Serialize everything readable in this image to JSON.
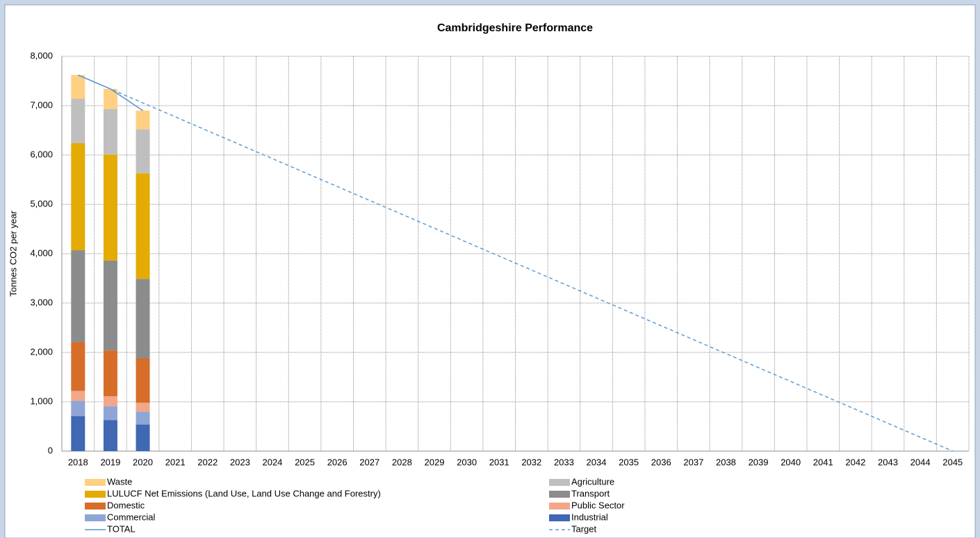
{
  "chart_data": {
    "type": "bar",
    "stacked": true,
    "title": "Cambridgeshire Performance",
    "y_label": "Tonnes CO2 per year",
    "categories": [
      "2018",
      "2019",
      "2020",
      "2021",
      "2022",
      "2023",
      "2024",
      "2025",
      "2026",
      "2027",
      "2028",
      "2029",
      "2030",
      "2031",
      "2032",
      "2033",
      "2034",
      "2035",
      "2036",
      "2037",
      "2038",
      "2039",
      "2040",
      "2041",
      "2042",
      "2043",
      "2044",
      "2045"
    ],
    "series": [
      {
        "name": "Industrial",
        "color": "#4068b3",
        "values": [
          710,
          630,
          540,
          null,
          null,
          null,
          null,
          null,
          null,
          null,
          null,
          null,
          null,
          null,
          null,
          null,
          null,
          null,
          null,
          null,
          null,
          null,
          null,
          null,
          null,
          null,
          null,
          null
        ]
      },
      {
        "name": "Commercial",
        "color": "#8fa5d6",
        "values": [
          310,
          280,
          260,
          null,
          null,
          null,
          null,
          null,
          null,
          null,
          null,
          null,
          null,
          null,
          null,
          null,
          null,
          null,
          null,
          null,
          null,
          null,
          null,
          null,
          null,
          null,
          null,
          null
        ]
      },
      {
        "name": "Public Sector",
        "color": "#f3a789",
        "values": [
          200,
          200,
          180,
          null,
          null,
          null,
          null,
          null,
          null,
          null,
          null,
          null,
          null,
          null,
          null,
          null,
          null,
          null,
          null,
          null,
          null,
          null,
          null,
          null,
          null,
          null,
          null,
          null
        ]
      },
      {
        "name": "Domestic",
        "color": "#d66d29",
        "values": [
          990,
          930,
          900,
          null,
          null,
          null,
          null,
          null,
          null,
          null,
          null,
          null,
          null,
          null,
          null,
          null,
          null,
          null,
          null,
          null,
          null,
          null,
          null,
          null,
          null,
          null,
          null,
          null
        ]
      },
      {
        "name": "Transport",
        "color": "#8c8c8c",
        "values": [
          1860,
          1820,
          1610,
          null,
          null,
          null,
          null,
          null,
          null,
          null,
          null,
          null,
          null,
          null,
          null,
          null,
          null,
          null,
          null,
          null,
          null,
          null,
          null,
          null,
          null,
          null,
          null,
          null
        ]
      },
      {
        "name": "LULUCF Net Emissions (Land Use, Land Use Change and Forestry)",
        "color": "#e3ab03",
        "values": [
          2170,
          2150,
          2140,
          null,
          null,
          null,
          null,
          null,
          null,
          null,
          null,
          null,
          null,
          null,
          null,
          null,
          null,
          null,
          null,
          null,
          null,
          null,
          null,
          null,
          null,
          null,
          null,
          null
        ]
      },
      {
        "name": "Agriculture",
        "color": "#bfbfbf",
        "values": [
          900,
          920,
          890,
          null,
          null,
          null,
          null,
          null,
          null,
          null,
          null,
          null,
          null,
          null,
          null,
          null,
          null,
          null,
          null,
          null,
          null,
          null,
          null,
          null,
          null,
          null,
          null,
          null
        ]
      },
      {
        "name": "Waste",
        "color": "#fed083",
        "values": [
          480,
          410,
          380,
          null,
          null,
          null,
          null,
          null,
          null,
          null,
          null,
          null,
          null,
          null,
          null,
          null,
          null,
          null,
          null,
          null,
          null,
          null,
          null,
          null,
          null,
          null,
          null,
          null
        ]
      },
      {
        "name": "TOTAL",
        "type": "line",
        "color": "#5b8fc9",
        "dashed": false,
        "values": [
          7620,
          7340,
          6900,
          null,
          null,
          null,
          null,
          null,
          null,
          null,
          null,
          null,
          null,
          null,
          null,
          null,
          null,
          null,
          null,
          null,
          null,
          null,
          null,
          null,
          null,
          null,
          null,
          null
        ]
      },
      {
        "name": "Target",
        "type": "line",
        "color": "#5b9bd5",
        "dashed": true,
        "values": [
          7620,
          7338,
          7056,
          6773,
          6491,
          6209,
          5927,
          5644,
          5362,
          5080,
          4798,
          4516,
          4233,
          3951,
          3669,
          3387,
          3104,
          2822,
          2540,
          2258,
          1976,
          1693,
          1411,
          1129,
          847,
          564,
          282,
          0
        ]
      }
    ],
    "ylim": [
      0,
      8000
    ],
    "yticks": [
      0,
      {
        "value": 1000,
        "label": "1,000"
      },
      {
        "value": 2000,
        "label": "2,000"
      },
      {
        "value": 3000,
        "label": "3,000"
      },
      {
        "value": 4000,
        "label": "4,000"
      },
      {
        "value": 5000,
        "label": "5,000"
      },
      {
        "value": 6000,
        "label": "6,000"
      },
      {
        "value": 7000,
        "label": "7,000"
      },
      {
        "value": 8000,
        "label": "8,000"
      }
    ],
    "grid": true
  }
}
